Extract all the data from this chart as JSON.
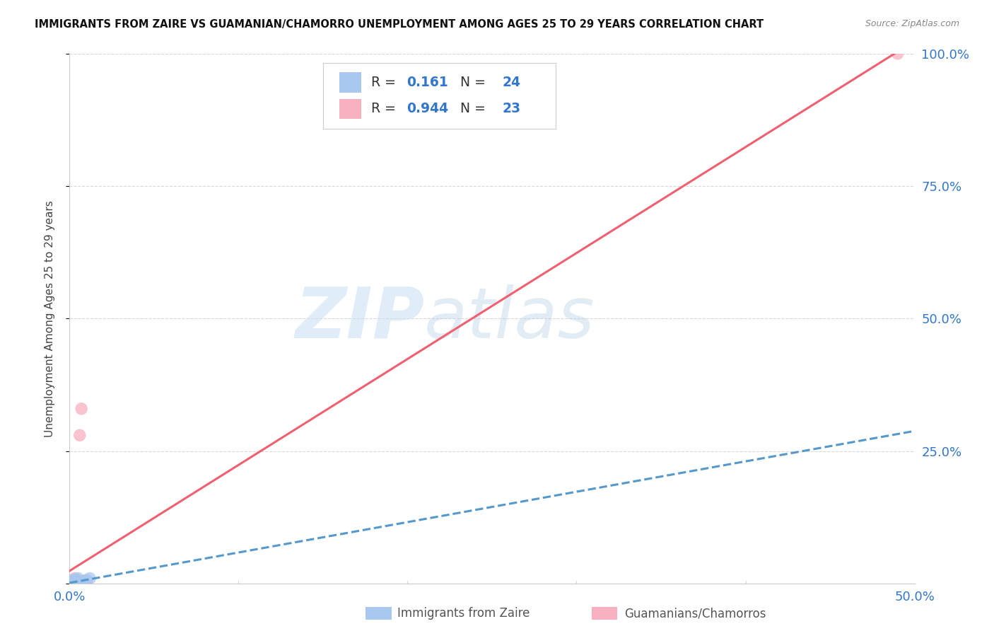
{
  "title": "IMMIGRANTS FROM ZAIRE VS GUAMANIAN/CHAMORRO UNEMPLOYMENT AMONG AGES 25 TO 29 YEARS CORRELATION CHART",
  "source": "Source: ZipAtlas.com",
  "ylabel": "Unemployment Among Ages 25 to 29 years",
  "xlim": [
    0.0,
    0.5
  ],
  "ylim": [
    0.0,
    1.0
  ],
  "xticks": [
    0.0,
    0.1,
    0.2,
    0.3,
    0.4,
    0.5
  ],
  "yticks": [
    0.0,
    0.25,
    0.5,
    0.75,
    1.0
  ],
  "xtick_labels_show": [
    "0.0%",
    "",
    "",
    "",
    "",
    "50.0%"
  ],
  "ytick_labels_right": [
    "",
    "25.0%",
    "50.0%",
    "75.0%",
    "100.0%"
  ],
  "background_color": "#ffffff",
  "grid_color": "#d8d8d8",
  "zaire_color": "#a8c8f0",
  "guam_color": "#f8b0c0",
  "zaire_line_color": "#5599cc",
  "guam_line_color": "#f06070",
  "zaire_R": 0.161,
  "zaire_N": 24,
  "guam_R": 0.944,
  "guam_N": 23,
  "zaire_points_x": [
    0.0,
    0.0,
    0.0,
    0.0,
    0.0,
    0.0,
    0.001,
    0.001,
    0.001,
    0.002,
    0.002,
    0.003,
    0.003,
    0.003,
    0.003,
    0.004,
    0.004,
    0.005,
    0.005,
    0.005,
    0.007,
    0.008,
    0.01,
    0.012
  ],
  "zaire_points_y": [
    0.0,
    0.0,
    0.001,
    0.002,
    0.003,
    0.005,
    0.0,
    0.001,
    0.003,
    0.0,
    0.004,
    0.0,
    0.002,
    0.004,
    0.008,
    0.003,
    0.006,
    0.002,
    0.005,
    0.01,
    0.004,
    0.003,
    0.007,
    0.01
  ],
  "guam_points_x": [
    0.0,
    0.0,
    0.0,
    0.0,
    0.001,
    0.001,
    0.001,
    0.002,
    0.002,
    0.002,
    0.003,
    0.003,
    0.003,
    0.003,
    0.004,
    0.004,
    0.005,
    0.005,
    0.006,
    0.007,
    0.008,
    0.01,
    0.49
  ],
  "guam_points_y": [
    0.0,
    0.0,
    0.001,
    0.003,
    0.0,
    0.002,
    0.005,
    0.001,
    0.003,
    0.006,
    0.002,
    0.003,
    0.005,
    0.01,
    0.002,
    0.004,
    0.003,
    0.006,
    0.28,
    0.33,
    0.005,
    0.004,
    1.0
  ],
  "watermark_zip": "ZIP",
  "watermark_atlas": "atlas",
  "axis_label_color": "#3377cc",
  "bottom_label_zaire": "Immigrants from Zaire",
  "bottom_label_guam": "Guamanians/Chamorros"
}
